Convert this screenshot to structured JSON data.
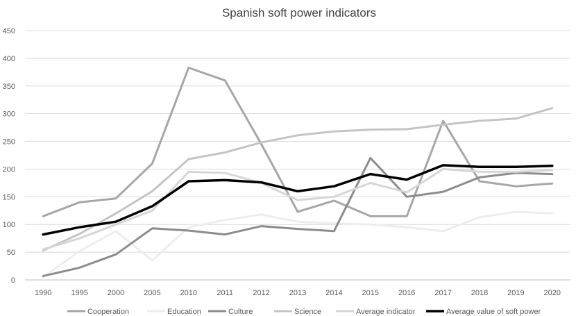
{
  "chart_data": {
    "type": "line",
    "title": "Spanish soft power indicators",
    "xlabel": "",
    "ylabel": "",
    "ylim": [
      0,
      450
    ],
    "yticks": [
      0,
      50,
      100,
      150,
      200,
      250,
      300,
      350,
      400,
      450
    ],
    "grid": true,
    "legend": "bottom",
    "categories": [
      "1990",
      "1995",
      "2000",
      "2005",
      "2010",
      "2011",
      "2012",
      "2013",
      "2014",
      "2015",
      "2016",
      "2017",
      "2018",
      "2019",
      "2020"
    ],
    "series": [
      {
        "name": "Cooperation",
        "color": "#a6a6a6",
        "width": 3,
        "values": [
          115,
          140,
          147,
          210,
          383,
          360,
          245,
          123,
          143,
          115,
          115,
          287,
          178,
          169,
          174
        ]
      },
      {
        "name": "Education",
        "color": "#ededed",
        "width": 3,
        "values": [
          5,
          52,
          88,
          35,
          95,
          108,
          118,
          105,
          102,
          100,
          95,
          88,
          113,
          123,
          120
        ]
      },
      {
        "name": "Culture",
        "color": "#8c8c8c",
        "width": 3,
        "values": [
          7,
          22,
          46,
          93,
          89,
          82,
          97,
          92,
          88,
          220,
          150,
          159,
          185,
          193,
          191
        ]
      },
      {
        "name": "Science",
        "color": "#c4c4c4",
        "width": 3,
        "values": [
          53,
          83,
          120,
          160,
          218,
          230,
          248,
          261,
          268,
          271,
          272,
          280,
          287,
          291,
          310
        ]
      },
      {
        "name": "Average indicator",
        "color": "#d6d6d6",
        "width": 3,
        "values": [
          55,
          75,
          100,
          125,
          195,
          193,
          175,
          144,
          150,
          175,
          158,
          200,
          195,
          195,
          198
        ]
      },
      {
        "name": "Average value of soft power",
        "color": "#000000",
        "width": 3.5,
        "values": [
          82,
          95,
          105,
          133,
          178,
          180,
          176,
          160,
          169,
          191,
          181,
          207,
          204,
          204,
          206
        ]
      }
    ]
  }
}
